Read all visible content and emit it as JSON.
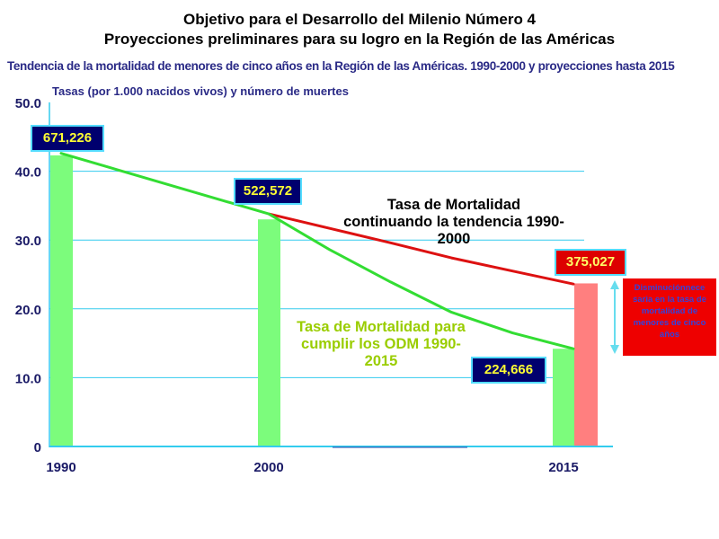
{
  "header": {
    "title_line1": "Objetivo para el Desarrollo del Milenio Número 4",
    "title_line2": "Proyecciones preliminares para su logro en la Región de las Américas",
    "subtitle": "Tendencia de la mortalidad de menores de cinco años en la Región de las Américas. 1990-2000 y proyecciones hasta 2015",
    "y_axis_label": "Tasas (por 1.000 nacidos vivos) y número de muertes"
  },
  "chart_data": {
    "type": "bar",
    "categories": [
      "1990",
      "2000",
      "2015"
    ],
    "ylim": [
      0,
      50
    ],
    "yticks": [
      "0",
      "10.0",
      "20.0",
      "30.0",
      "40.0",
      "50.0"
    ],
    "grid": true,
    "colors": {
      "bar_green": "#7cfc7c",
      "bar_red": "#ff7f7f",
      "line_red": "#dd1111",
      "line_green": "#33dd33",
      "gridline": "#33ccee",
      "axis": "#33ccee"
    },
    "bars": [
      {
        "category": "1990",
        "value": 42.3,
        "color": "green"
      },
      {
        "category": "2000",
        "value": 33.0,
        "color": "green"
      },
      {
        "category": "2015",
        "value": 14.2,
        "color": "green"
      },
      {
        "category": "2015",
        "value": 23.7,
        "color": "red"
      }
    ],
    "series": [
      {
        "name": "Tasa de Mortalidad continuando la tendencia 1990-2000",
        "x": [
          2000,
          2003,
          2006,
          2009,
          2012,
          2015
        ],
        "values": [
          33.8,
          31.7,
          29.6,
          27.4,
          25.5,
          23.6
        ],
        "color": "red"
      },
      {
        "name": "Tasa de Mortalidad para cumplir los ODM 1990-2015",
        "x": [
          1990,
          1995,
          2000,
          2003,
          2006,
          2009,
          2012,
          2015
        ],
        "values": [
          42.6,
          38.2,
          33.8,
          28.6,
          23.9,
          19.5,
          16.5,
          14.2
        ],
        "color": "green"
      }
    ],
    "data_labels": [
      {
        "category": "1990",
        "text": "671,226"
      },
      {
        "category": "2000",
        "text": "522,572"
      },
      {
        "category": "2015",
        "text": "224,666"
      },
      {
        "category": "2015",
        "text": "375,027"
      }
    ]
  },
  "annotations": {
    "trend_line1": "Tasa de Mortalidad",
    "trend_line2": "continuando la tendencia 1990-",
    "trend_line3": "2000",
    "odm_line1": "Tasa de Mortalidad para",
    "odm_line2": "cumplir los ODM 1990-",
    "odm_line3": "2015",
    "note": "Disminuciónnece saria en la tasa de mortalidad de menores de cinco años"
  }
}
